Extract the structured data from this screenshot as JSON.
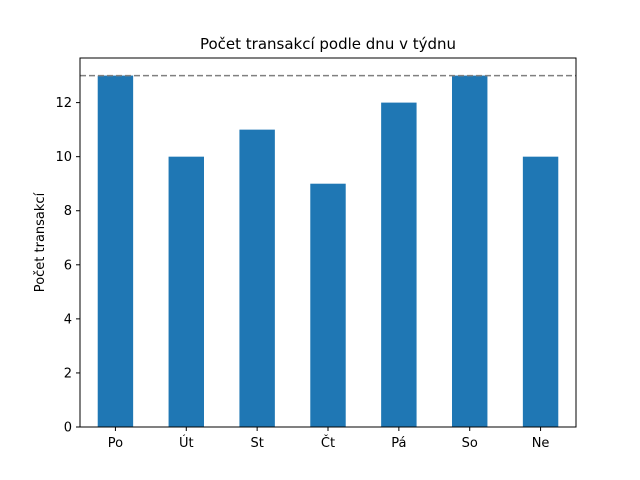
{
  "chart_data": {
    "type": "bar",
    "title": "Počet transakcí podle dnu v týdnu",
    "xlabel": "",
    "ylabel": "Počet transakcí",
    "categories": [
      "Po",
      "Út",
      "St",
      "Čt",
      "Pá",
      "So",
      "Ne"
    ],
    "values": [
      13,
      10,
      11,
      9,
      12,
      13,
      10
    ],
    "ylim": [
      0,
      13.65
    ],
    "yticks": [
      0,
      2,
      4,
      6,
      8,
      10,
      12
    ],
    "reference_line": {
      "value": 13,
      "style": "dashed",
      "color": "#808080"
    },
    "bar_color": "#1f77b4",
    "grid": false,
    "legend": "none"
  }
}
